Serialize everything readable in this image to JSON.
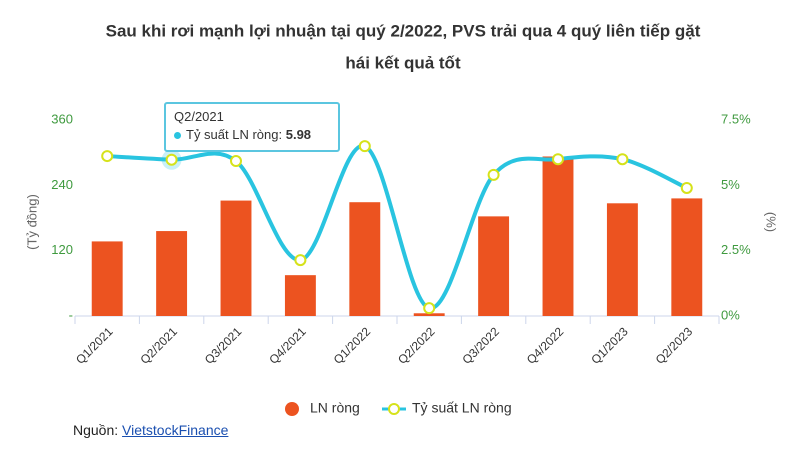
{
  "chart_data": {
    "type": "bar-line",
    "title": [
      "Sau khi rơi mạnh lợi nhuận tại quý 2/2022, PVS trải qua 4 quý liên tiếp gặt",
      "hái kết quả tốt"
    ],
    "ylabel": "(Tỷ đồng)",
    "y2label": "(%)",
    "categories": [
      "Q1/2021",
      "Q2/2021",
      "Q3/2021",
      "Q4/2021",
      "Q1/2022",
      "Q2/2022",
      "Q3/2022",
      "Q4/2022",
      "Q1/2023",
      "Q2/2023"
    ],
    "series": [
      {
        "name": "LN ròng",
        "type": "bar",
        "color": "#ec5320",
        "values": [
          137,
          156,
          212,
          75,
          209,
          5,
          183,
          293,
          207,
          216
        ]
      },
      {
        "name": "Tỷ suất LN ròng",
        "type": "line",
        "axis": "y2",
        "color": "#29c4e0",
        "marker_color": "#d6e21a",
        "values": [
          6.12,
          5.98,
          5.93,
          2.14,
          6.5,
          0.3,
          5.4,
          6.0,
          6.0,
          4.9
        ]
      }
    ],
    "ylim": [
      0,
      360
    ],
    "yticks": [
      {
        "value": 0,
        "label": "-"
      },
      120,
      240,
      360
    ],
    "y2lim": [
      0,
      7.5
    ],
    "y2ticks": [
      {
        "value": 0,
        "label": "0%"
      },
      {
        "value": 2.5,
        "label": "2.5%"
      },
      {
        "value": 5,
        "label": "5%"
      },
      {
        "value": 7.5,
        "label": "7.5%"
      }
    ],
    "tooltip_label": "Tỷ suất LN ròng:"
  },
  "source": {
    "label": "Nguồn:",
    "link": "VietstockFinance"
  }
}
